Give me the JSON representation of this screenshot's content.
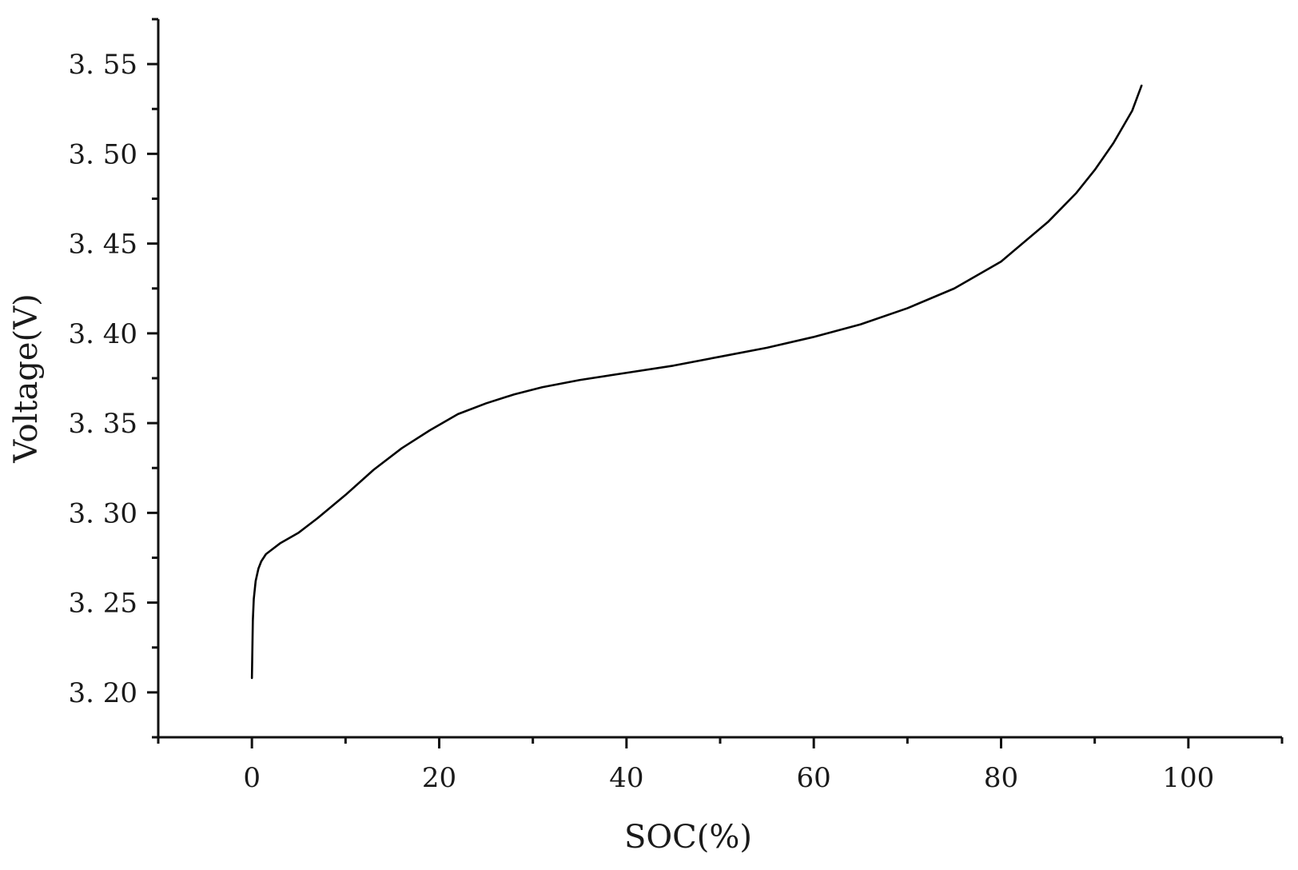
{
  "chart_data": {
    "type": "line",
    "xlabel": "SOC(%)",
    "ylabel": "Voltage(V)",
    "xlim": [
      -10,
      110
    ],
    "ylim": [
      3.175,
      3.575
    ],
    "x_ticks": [
      0,
      20,
      40,
      60,
      80,
      100
    ],
    "x_tick_labels": [
      "0",
      "20",
      "40",
      "60",
      "80",
      "100"
    ],
    "y_ticks": [
      3.2,
      3.25,
      3.3,
      3.35,
      3.4,
      3.45,
      3.5,
      3.55
    ],
    "y_tick_labels": [
      "3. 20",
      "3. 25",
      "3. 30",
      "3. 35",
      "3. 40",
      "3. 45",
      "3. 50",
      "3. 55"
    ],
    "x_minor_step": 10,
    "y_minor_step": 0.025,
    "grid": false,
    "series": [
      {
        "color": "#000000",
        "x": [
          0,
          0.1,
          0.2,
          0.4,
          0.7,
          1,
          1.5,
          2,
          3,
          5,
          7,
          10,
          13,
          16,
          19,
          22,
          25,
          28,
          31,
          35,
          40,
          45,
          50,
          55,
          60,
          65,
          70,
          75,
          80,
          85,
          88,
          90,
          92,
          94,
          95
        ],
        "y": [
          3.208,
          3.24,
          3.252,
          3.262,
          3.269,
          3.273,
          3.277,
          3.279,
          3.283,
          3.289,
          3.297,
          3.31,
          3.324,
          3.336,
          3.346,
          3.355,
          3.361,
          3.366,
          3.37,
          3.374,
          3.378,
          3.382,
          3.387,
          3.392,
          3.398,
          3.405,
          3.414,
          3.425,
          3.44,
          3.462,
          3.478,
          3.491,
          3.506,
          3.524,
          3.538
        ]
      }
    ]
  }
}
